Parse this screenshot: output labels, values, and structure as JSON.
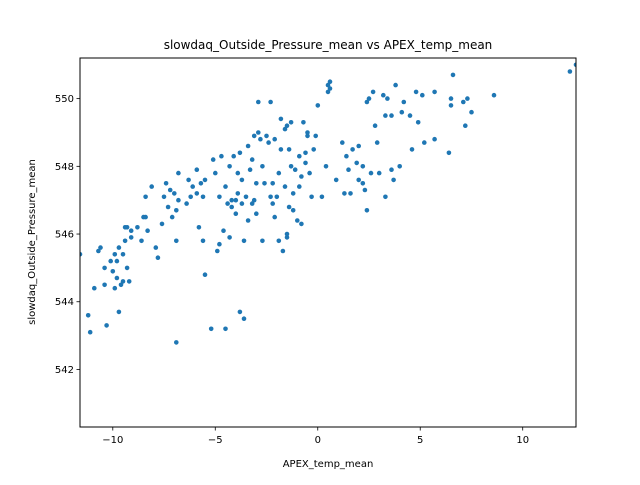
{
  "chart_data": {
    "type": "scatter",
    "title": "slowdaq_Outside_Pressure_mean vs APEX_temp_mean",
    "xlabel": "APEX_temp_mean",
    "ylabel": "slowdaq_Outside_Pressure_mean",
    "xlim": [
      -11.6,
      12.6
    ],
    "ylim": [
      540.3,
      551.2
    ],
    "xticks": [
      {
        "value": -10,
        "label": "−10"
      },
      {
        "value": -5,
        "label": "−5"
      },
      {
        "value": 0,
        "label": "0"
      },
      {
        "value": 5,
        "label": "5"
      },
      {
        "value": 10,
        "label": "10"
      }
    ],
    "yticks": [
      {
        "value": 542,
        "label": "542"
      },
      {
        "value": 544,
        "label": "544"
      },
      {
        "value": 546,
        "label": "546"
      },
      {
        "value": 548,
        "label": "548"
      },
      {
        "value": 550,
        "label": "550"
      }
    ],
    "grid": false,
    "legend": null,
    "marker_color": "#1f77b4",
    "points": [
      [
        -11.6,
        545.4
      ],
      [
        -11.2,
        543.6
      ],
      [
        -11.1,
        543.1
      ],
      [
        -10.9,
        544.4
      ],
      [
        -10.7,
        545.5
      ],
      [
        -10.6,
        545.6
      ],
      [
        -10.4,
        545.0
      ],
      [
        -10.4,
        544.5
      ],
      [
        -10.3,
        543.3
      ],
      [
        -10.1,
        545.2
      ],
      [
        -10.0,
        544.9
      ],
      [
        -9.9,
        544.4
      ],
      [
        -9.9,
        545.4
      ],
      [
        -9.8,
        545.2
      ],
      [
        -9.8,
        544.7
      ],
      [
        -9.7,
        543.7
      ],
      [
        -9.7,
        545.6
      ],
      [
        -9.6,
        544.5
      ],
      [
        -9.5,
        545.4
      ],
      [
        -9.5,
        544.6
      ],
      [
        -9.4,
        546.2
      ],
      [
        -9.4,
        545.8
      ],
      [
        -9.3,
        546.2
      ],
      [
        -9.3,
        545.0
      ],
      [
        -9.2,
        544.6
      ],
      [
        -9.1,
        545.9
      ],
      [
        -9.1,
        546.1
      ],
      [
        -8.8,
        546.2
      ],
      [
        -8.6,
        545.8
      ],
      [
        -8.5,
        546.5
      ],
      [
        -8.4,
        547.1
      ],
      [
        -8.4,
        546.5
      ],
      [
        -8.3,
        546.1
      ],
      [
        -8.1,
        547.4
      ],
      [
        -7.9,
        545.6
      ],
      [
        -7.8,
        545.3
      ],
      [
        -7.6,
        546.3
      ],
      [
        -7.5,
        547.1
      ],
      [
        -7.4,
        547.5
      ],
      [
        -7.3,
        546.8
      ],
      [
        -7.2,
        547.3
      ],
      [
        -7.1,
        546.5
      ],
      [
        -7.0,
        547.2
      ],
      [
        -6.9,
        546.7
      ],
      [
        -6.9,
        545.8
      ],
      [
        -6.9,
        542.8
      ],
      [
        -6.8,
        547.0
      ],
      [
        -6.8,
        547.8
      ],
      [
        -6.4,
        546.9
      ],
      [
        -6.3,
        547.6
      ],
      [
        -6.2,
        547.1
      ],
      [
        -6.1,
        547.4
      ],
      [
        -5.9,
        547.2
      ],
      [
        -5.9,
        547.9
      ],
      [
        -5.8,
        546.2
      ],
      [
        -5.7,
        547.5
      ],
      [
        -5.6,
        547.1
      ],
      [
        -5.6,
        545.8
      ],
      [
        -5.5,
        547.6
      ],
      [
        -5.5,
        544.8
      ],
      [
        -5.2,
        543.2
      ],
      [
        -5.1,
        548.2
      ],
      [
        -5.0,
        547.8
      ],
      [
        -4.9,
        545.5
      ],
      [
        -4.8,
        547.1
      ],
      [
        -4.8,
        545.7
      ],
      [
        -4.7,
        548.3
      ],
      [
        -4.6,
        546.1
      ],
      [
        -4.5,
        547.4
      ],
      [
        -4.5,
        543.2
      ],
      [
        -4.4,
        546.9
      ],
      [
        -4.3,
        545.9
      ],
      [
        -4.3,
        548.0
      ],
      [
        -4.2,
        546.8
      ],
      [
        -4.2,
        547.0
      ],
      [
        -4.1,
        548.3
      ],
      [
        -4.0,
        546.6
      ],
      [
        -4.0,
        547.0
      ],
      [
        -3.9,
        547.2
      ],
      [
        -3.9,
        547.8
      ],
      [
        -3.8,
        543.7
      ],
      [
        -3.8,
        548.4
      ],
      [
        -3.7,
        546.9
      ],
      [
        -3.7,
        547.6
      ],
      [
        -3.6,
        543.5
      ],
      [
        -3.6,
        545.8
      ],
      [
        -3.5,
        547.1
      ],
      [
        -3.4,
        548.6
      ],
      [
        -3.4,
        546.4
      ],
      [
        -3.3,
        547.9
      ],
      [
        -3.2,
        548.2
      ],
      [
        -3.2,
        546.9
      ],
      [
        -3.1,
        547.0
      ],
      [
        -3.1,
        548.9
      ],
      [
        -3.0,
        546.6
      ],
      [
        -3.0,
        547.5
      ],
      [
        -2.9,
        549.9
      ],
      [
        -2.9,
        549.0
      ],
      [
        -2.8,
        548.8
      ],
      [
        -2.7,
        548.0
      ],
      [
        -2.7,
        545.8
      ],
      [
        -2.6,
        547.5
      ],
      [
        -2.5,
        548.9
      ],
      [
        -2.4,
        548.7
      ],
      [
        -2.3,
        547.1
      ],
      [
        -2.3,
        549.9
      ],
      [
        -2.2,
        546.9
      ],
      [
        -2.2,
        547.5
      ],
      [
        -2.1,
        548.8
      ],
      [
        -2.1,
        546.5
      ],
      [
        -2.0,
        547.1
      ],
      [
        -1.9,
        545.8
      ],
      [
        -1.9,
        547.8
      ],
      [
        -1.8,
        549.4
      ],
      [
        -1.8,
        548.5
      ],
      [
        -1.7,
        545.5
      ],
      [
        -1.6,
        549.1
      ],
      [
        -1.6,
        547.4
      ],
      [
        -1.5,
        549.2
      ],
      [
        -1.5,
        545.9
      ],
      [
        -1.5,
        546.0
      ],
      [
        -1.4,
        548.5
      ],
      [
        -1.4,
        546.8
      ],
      [
        -1.3,
        548.0
      ],
      [
        -1.3,
        549.3
      ],
      [
        -1.2,
        547.2
      ],
      [
        -1.2,
        546.7
      ],
      [
        -1.1,
        547.9
      ],
      [
        -1.0,
        546.4
      ],
      [
        -0.9,
        548.3
      ],
      [
        -0.9,
        547.4
      ],
      [
        -0.8,
        546.3
      ],
      [
        -0.8,
        547.7
      ],
      [
        -0.7,
        549.3
      ],
      [
        -0.6,
        548.4
      ],
      [
        -0.6,
        548.1
      ],
      [
        -0.5,
        549.0
      ],
      [
        -0.5,
        548.9
      ],
      [
        -0.4,
        547.8
      ],
      [
        -0.3,
        547.1
      ],
      [
        -0.2,
        548.5
      ],
      [
        -0.1,
        548.9
      ],
      [
        0.0,
        549.8
      ],
      [
        0.2,
        547.1
      ],
      [
        0.4,
        548.0
      ],
      [
        0.5,
        550.2
      ],
      [
        0.5,
        550.4
      ],
      [
        0.6,
        550.5
      ],
      [
        0.6,
        550.3
      ],
      [
        0.9,
        547.6
      ],
      [
        1.2,
        548.7
      ],
      [
        1.3,
        547.2
      ],
      [
        1.4,
        548.3
      ],
      [
        1.5,
        547.9
      ],
      [
        1.6,
        547.2
      ],
      [
        1.7,
        548.5
      ],
      [
        1.9,
        548.1
      ],
      [
        2.0,
        547.6
      ],
      [
        2.0,
        548.6
      ],
      [
        2.2,
        547.5
      ],
      [
        2.2,
        548.0
      ],
      [
        2.3,
        547.3
      ],
      [
        2.4,
        549.9
      ],
      [
        2.4,
        546.7
      ],
      [
        2.5,
        550.0
      ],
      [
        2.6,
        547.8
      ],
      [
        2.7,
        550.2
      ],
      [
        2.8,
        549.2
      ],
      [
        2.9,
        548.7
      ],
      [
        3.0,
        547.8
      ],
      [
        3.2,
        550.1
      ],
      [
        3.3,
        549.5
      ],
      [
        3.3,
        547.1
      ],
      [
        3.4,
        550.0
      ],
      [
        3.6,
        549.5
      ],
      [
        3.6,
        547.9
      ],
      [
        3.7,
        547.6
      ],
      [
        3.8,
        550.4
      ],
      [
        4.0,
        548.0
      ],
      [
        4.1,
        549.6
      ],
      [
        4.2,
        549.9
      ],
      [
        4.5,
        549.5
      ],
      [
        4.6,
        548.5
      ],
      [
        4.8,
        550.2
      ],
      [
        4.9,
        549.3
      ],
      [
        5.1,
        550.1
      ],
      [
        5.2,
        548.7
      ],
      [
        5.7,
        550.2
      ],
      [
        5.7,
        548.8
      ],
      [
        6.3,
        551.3
      ],
      [
        6.4,
        548.4
      ],
      [
        6.5,
        550.0
      ],
      [
        6.5,
        549.8
      ],
      [
        6.6,
        550.7
      ],
      [
        7.1,
        549.9
      ],
      [
        7.2,
        549.2
      ],
      [
        7.3,
        550.0
      ],
      [
        7.5,
        549.6
      ],
      [
        8.4,
        551.3
      ],
      [
        8.6,
        550.1
      ],
      [
        12.3,
        550.8
      ],
      [
        12.6,
        551.0
      ]
    ]
  }
}
